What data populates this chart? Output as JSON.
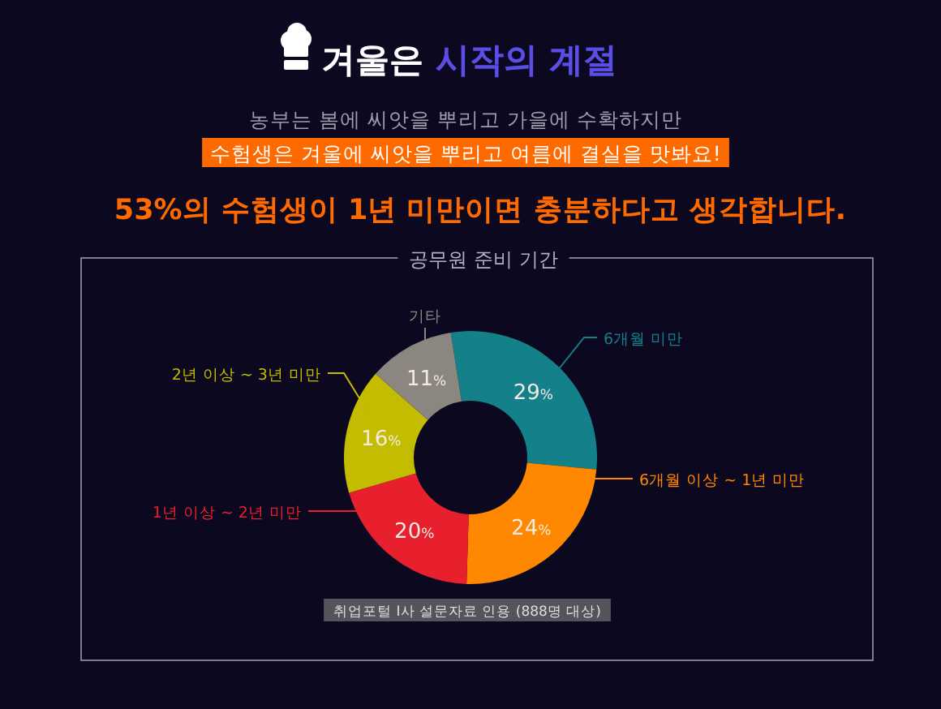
{
  "chart_data": {
    "type": "donut",
    "title": "겨울은 **시작의 계절**",
    "subtitle": "농부는 봄에 씨앗을 뿌리고 가을에 수확하지만",
    "annotations": [
      "수험생은 겨울에 씨앗을 뿌리고 여름에 결실을 맛봐요!",
      "53%의 수험생이 1년 미만이면 충분하다고 생각합니다.",
      "공무원 준비 기간",
      "취업포털 I사 설문자료 인용 (888명 대상)"
    ],
    "categories": [
      "6개월 미만",
      "6개월 이상 ~ 1년 미만",
      "1년 이상 ~ 2년 미만",
      "2년 이상 ~ 3년 미만",
      "기타"
    ],
    "values": [
      29,
      24,
      20,
      16,
      11
    ],
    "value_labels": [
      "29%",
      "24%",
      "20%",
      "16%",
      "11%"
    ],
    "colors": [
      "#148089",
      "#ff8800",
      "#e8202e",
      "#c4bc00",
      "#8c8680"
    ]
  }
}
